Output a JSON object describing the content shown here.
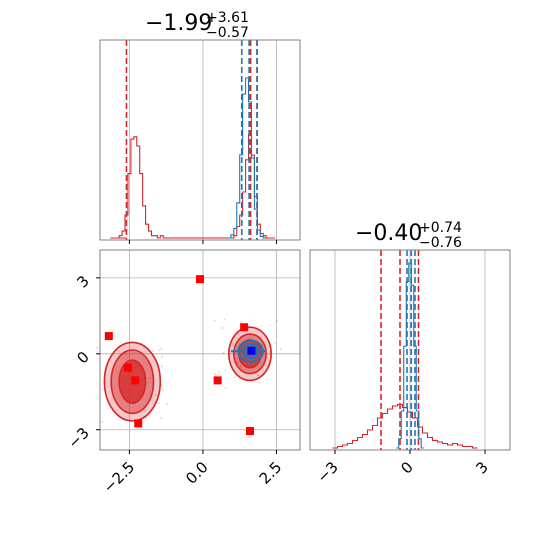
{
  "chart_data": [
    {
      "type": "histogram",
      "panel": "top-left",
      "title_value": "−1.99",
      "title_plus": "+3.61",
      "title_minus": "−0.57",
      "xlim": [
        -3.5,
        3.3
      ],
      "grid": true,
      "series": [
        {
          "color": "#d62728",
          "bins_x": [
            -3.1,
            -3.0,
            -2.9,
            -2.8,
            -2.7,
            -2.6,
            -2.5,
            -2.4,
            -2.3,
            -2.2,
            -2.1,
            -2.0,
            -1.9,
            -1.8,
            -1.7,
            -1.6,
            -1.5,
            -1.4,
            -1.3,
            -1.2,
            -1.1,
            -1.0,
            -0.9,
            -0.8,
            -0.7,
            -0.6,
            -0.5,
            -0.4,
            -0.3,
            -0.2,
            -0.1,
            0.0,
            0.1,
            0.2,
            0.3,
            0.4,
            0.5,
            0.6,
            0.7,
            0.8,
            0.9,
            1.0,
            1.1,
            1.2,
            1.3,
            1.4,
            1.5,
            1.6,
            1.7,
            1.8,
            1.9,
            2.0,
            2.1,
            2.2,
            2.3,
            2.4
          ],
          "bins_y": [
            0.0,
            0.0,
            0.0,
            0.01,
            0.03,
            0.1,
            0.28,
            0.43,
            0.44,
            0.4,
            0.28,
            0.14,
            0.06,
            0.03,
            0.01,
            0.01,
            0.0,
            0.01,
            0.0,
            0.0,
            0.0,
            0.0,
            0.0,
            0.0,
            0.0,
            0.0,
            0.0,
            0.0,
            0.0,
            0.0,
            0.0,
            0.0,
            0.0,
            0.0,
            0.0,
            0.0,
            0.0,
            0.0,
            0.0,
            0.0,
            0.0,
            0.0,
            0.01,
            0.05,
            0.1,
            0.2,
            0.34,
            0.45,
            0.36,
            0.18,
            0.06,
            0.02,
            0.01,
            0.0,
            0.0,
            0.0
          ],
          "quantiles": [
            -2.6,
            1.62,
            1.84
          ]
        },
        {
          "color": "#1f77b4",
          "bins_x": [
            0.9,
            1.0,
            1.1,
            1.2,
            1.3,
            1.4,
            1.5,
            1.6,
            1.7,
            1.8,
            1.9,
            2.0,
            2.1
          ],
          "bins_y": [
            0.0,
            0.02,
            0.06,
            0.22,
            0.52,
            0.9,
            1.0,
            0.85,
            0.5,
            0.18,
            0.05,
            0.01,
            0.0
          ],
          "quantiles": [
            1.32,
            1.57,
            1.84
          ]
        }
      ]
    },
    {
      "type": "histogram",
      "panel": "bottom-right",
      "title_value": "−0.40",
      "title_plus": "+0.74",
      "title_minus": "−0.76",
      "xlim": [
        -4.0,
        4.0
      ],
      "xticks": [
        "−3",
        "0",
        "3"
      ],
      "grid": true,
      "series": [
        {
          "color": "#d62728",
          "bins_x": [
            -3.0,
            -2.8,
            -2.6,
            -2.4,
            -2.2,
            -2.0,
            -1.8,
            -1.6,
            -1.4,
            -1.2,
            -1.0,
            -0.8,
            -0.6,
            -0.4,
            -0.2,
            0.0,
            0.2,
            0.4,
            0.6,
            0.8,
            1.0,
            1.2,
            1.4,
            1.6,
            1.8,
            2.0,
            2.2,
            2.4,
            2.6
          ],
          "bins_y": [
            0.0,
            0.01,
            0.02,
            0.03,
            0.05,
            0.07,
            0.09,
            0.12,
            0.15,
            0.2,
            0.23,
            0.26,
            0.28,
            0.29,
            0.27,
            0.24,
            0.2,
            0.14,
            0.1,
            0.07,
            0.05,
            0.04,
            0.03,
            0.02,
            0.03,
            0.02,
            0.01,
            0.01,
            0.0
          ],
          "quantiles": [
            -1.16,
            -0.4,
            0.34
          ]
        },
        {
          "color": "#1f77b4",
          "bins_x": [
            -0.5,
            -0.4,
            -0.3,
            -0.2,
            -0.1,
            0.0,
            0.1,
            0.2,
            0.3,
            0.4,
            0.5
          ],
          "bins_y": [
            0.0,
            0.05,
            0.2,
            0.55,
            0.9,
            1.0,
            0.88,
            0.55,
            0.2,
            0.05,
            0.0
          ],
          "quantiles": [
            -0.12,
            0.05,
            0.2
          ]
        }
      ]
    },
    {
      "type": "scatter",
      "panel": "bottom-left",
      "xlim": [
        -3.5,
        3.3
      ],
      "ylim": [
        -3.8,
        4.1
      ],
      "xticks": [
        "−2.5",
        "0.0",
        "2.5"
      ],
      "yticks": [
        "3",
        "0",
        "−3"
      ],
      "grid": true,
      "contours_red": [
        {
          "center": [
            -2.4,
            -1.1
          ],
          "radii": [
            [
              0.95,
              1.55
            ],
            [
              0.72,
              1.25
            ],
            [
              0.45,
              0.85
            ]
          ]
        },
        {
          "center": [
            1.6,
            0.0
          ],
          "radii": [
            [
              0.72,
              1.05
            ],
            [
              0.55,
              0.78
            ],
            [
              0.38,
              0.55
            ]
          ]
        }
      ],
      "contours_blue": [
        {
          "center": [
            1.62,
            0.1
          ],
          "radii": [
            [
              0.42,
              0.42
            ],
            [
              0.25,
              0.27
            ]
          ]
        }
      ],
      "red_squares": [
        [
          -3.2,
          0.7
        ],
        [
          -2.55,
          -0.55
        ],
        [
          -2.3,
          -1.05
        ],
        [
          -2.2,
          -2.75
        ],
        [
          -0.1,
          2.95
        ],
        [
          0.5,
          -1.05
        ],
        [
          1.4,
          1.05
        ],
        [
          1.6,
          -3.05
        ]
      ],
      "blue_square": [
        1.65,
        0.12
      ],
      "blue_markers": [
        1.55,
        0.1
      ]
    }
  ],
  "colors": {
    "red": "#d62728",
    "blue": "#1f77b4",
    "grid": "#b0b0b0",
    "frame": "#808080",
    "square_red": "#ff0000",
    "square_blue": "#0000ff"
  }
}
